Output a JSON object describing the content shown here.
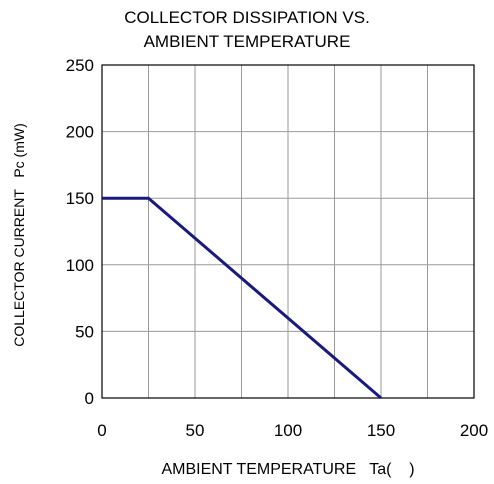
{
  "chart_data": {
    "type": "line",
    "title_lines": [
      "COLLECTOR DISSIPATION VS.",
      "AMBIENT TEMPERATURE"
    ],
    "xlabel": "AMBIENT TEMPERATURE   Ta(    )",
    "ylabel": "COLLECTOR CURRENT   Pc (mW)",
    "xlim": [
      0,
      200
    ],
    "ylim": [
      0,
      250
    ],
    "xticks": [
      0,
      25,
      50,
      75,
      100,
      125,
      150,
      175,
      200
    ],
    "yticks": [
      0,
      50,
      100,
      150,
      200,
      250
    ],
    "xtick_labels": [
      "0",
      "50",
      "100",
      "150",
      "200"
    ],
    "ytick_labels": [
      "0",
      "50",
      "100",
      "150",
      "200",
      "250"
    ],
    "grid": true,
    "series": [
      {
        "x": [
          0,
          25,
          150
        ],
        "y": [
          150,
          150,
          0
        ],
        "color": "#1a1a7a"
      }
    ]
  }
}
